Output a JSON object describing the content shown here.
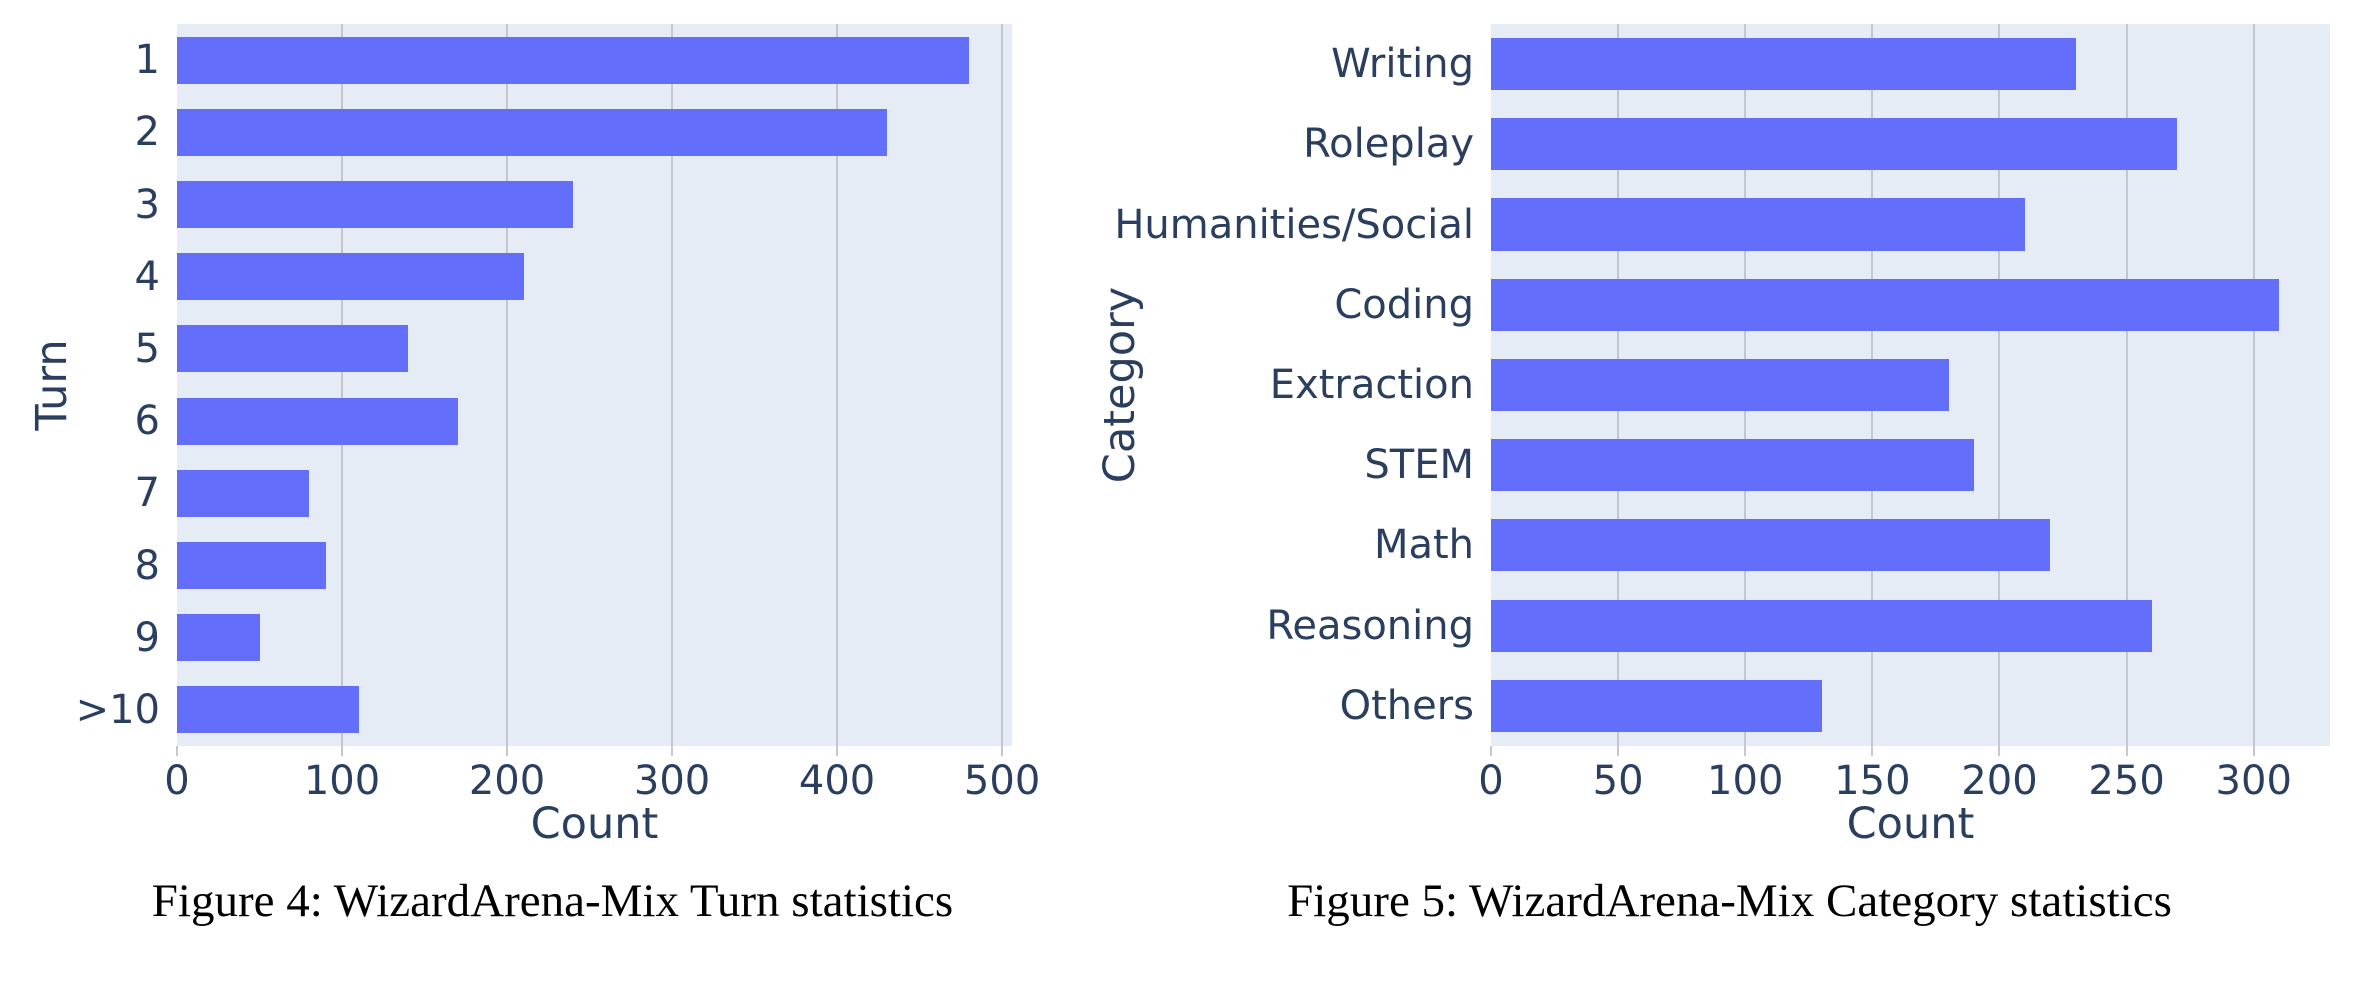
{
  "page": {
    "background": "#ffffff"
  },
  "colors": {
    "bar_fill": "#636efa",
    "plot_background": "#e5ecf6",
    "gridline": "#c4c8ce",
    "axis_text": "#2a3f5f",
    "caption_text": "#000000"
  },
  "chart_data": [
    {
      "type": "bar",
      "orientation": "horizontal",
      "caption": "Figure 4: WizardArena-Mix Turn statistics",
      "title": "",
      "xlabel": "Count",
      "ylabel": "Turn",
      "categories": [
        "1",
        "2",
        "3",
        "4",
        "5",
        "6",
        "7",
        "8",
        "9",
        ">10"
      ],
      "values": [
        480,
        430,
        240,
        210,
        140,
        170,
        80,
        90,
        50,
        110
      ],
      "xticks": [
        0,
        100,
        200,
        300,
        400,
        500
      ],
      "xlim": [
        0,
        506
      ],
      "grid": true,
      "legend": null
    },
    {
      "type": "bar",
      "orientation": "horizontal",
      "caption": "Figure 5: WizardArena-Mix Category statistics",
      "title": "",
      "xlabel": "Count",
      "ylabel": "Category",
      "categories": [
        "Writing",
        "Roleplay",
        "Humanities/Social",
        "Coding",
        "Extraction",
        "STEM",
        "Math",
        "Reasoning",
        "Others"
      ],
      "values": [
        230,
        270,
        210,
        310,
        180,
        190,
        220,
        260,
        130
      ],
      "xticks": [
        0,
        50,
        100,
        150,
        200,
        250,
        300
      ],
      "xlim": [
        0,
        330
      ],
      "grid": true,
      "legend": null
    }
  ]
}
